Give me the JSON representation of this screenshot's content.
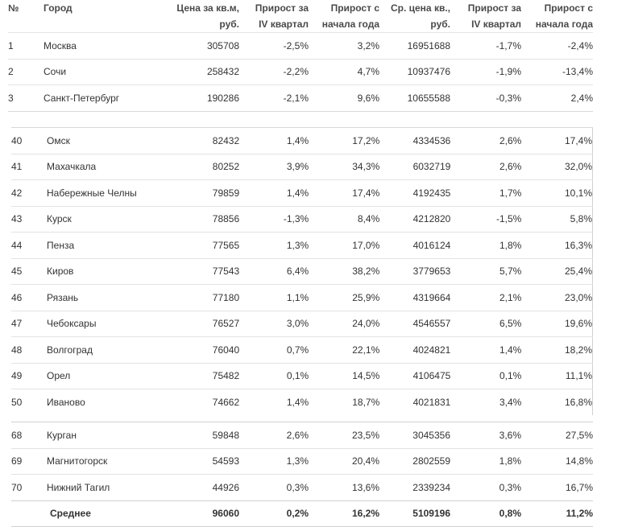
{
  "headers": {
    "rank": "№",
    "city": "Город",
    "price": [
      "Цена за кв.м,",
      "руб."
    ],
    "growth_q4": [
      "Прирост за",
      "IV квартал"
    ],
    "growth_ytd": [
      "Прирост с",
      "начала года"
    ],
    "avg_price": [
      "Ср. цена кв.,",
      "руб."
    ],
    "avg_growth_q4": [
      "Прирост за",
      "IV квартал"
    ],
    "avg_growth_ytd": [
      "Прирост с",
      "начала года"
    ]
  },
  "top_rows": [
    [
      "1",
      "Москва",
      "305708",
      "-2,5%",
      "3,2%",
      "16951688",
      "-1,7%",
      "-2,4%"
    ],
    [
      "2",
      "Сочи",
      "258432",
      "-2,2%",
      "4,7%",
      "10937476",
      "-1,9%",
      "-13,4%"
    ],
    [
      "3",
      "Санкт-Петербург",
      "190286",
      "-2,1%",
      "9,6%",
      "10655588",
      "-0,3%",
      "2,4%"
    ]
  ],
  "middle_rows": [
    [
      "40",
      "Омск",
      "82432",
      "1,4%",
      "17,2%",
      "4334536",
      "2,6%",
      "17,4%"
    ],
    [
      "41",
      "Махачкала",
      "80252",
      "3,9%",
      "34,3%",
      "6032719",
      "2,6%",
      "32,0%"
    ],
    [
      "42",
      "Набережные Челны",
      "79859",
      "1,4%",
      "17,4%",
      "4192435",
      "1,7%",
      "10,1%"
    ],
    [
      "43",
      "Курск",
      "78856",
      "-1,3%",
      "8,4%",
      "4212820",
      "-1,5%",
      "5,8%"
    ],
    [
      "44",
      "Пенза",
      "77565",
      "1,3%",
      "17,0%",
      "4016124",
      "1,8%",
      "16,3%"
    ],
    [
      "45",
      "Киров",
      "77543",
      "6,4%",
      "38,2%",
      "3779653",
      "5,7%",
      "25,4%"
    ],
    [
      "46",
      "Рязань",
      "77180",
      "1,1%",
      "25,9%",
      "4319664",
      "2,1%",
      "23,0%"
    ],
    [
      "47",
      "Чебоксары",
      "76527",
      "3,0%",
      "24,0%",
      "4546557",
      "6,5%",
      "19,6%"
    ],
    [
      "48",
      "Волгоград",
      "76040",
      "0,7%",
      "22,1%",
      "4024821",
      "1,4%",
      "18,2%"
    ],
    [
      "49",
      "Орел",
      "75482",
      "0,1%",
      "14,5%",
      "4106475",
      "0,1%",
      "11,1%"
    ],
    [
      "50",
      "Иваново",
      "74662",
      "1,4%",
      "18,7%",
      "4021831",
      "3,4%",
      "16,8%"
    ]
  ],
  "bottom_rows": [
    [
      "68",
      "Курган",
      "59848",
      "2,6%",
      "23,5%",
      "3045356",
      "3,6%",
      "27,5%"
    ],
    [
      "69",
      "Магнитогорск",
      "54593",
      "1,3%",
      "20,4%",
      "2802559",
      "1,8%",
      "14,8%"
    ],
    [
      "70",
      "Нижний Тагил",
      "44926",
      "0,3%",
      "13,6%",
      "2339234",
      "0,3%",
      "16,7%"
    ]
  ],
  "average_row": [
    "",
    "Среднее",
    "96060",
    "0,2%",
    "16,2%",
    "5109196",
    "0,8%",
    "11,2%"
  ]
}
